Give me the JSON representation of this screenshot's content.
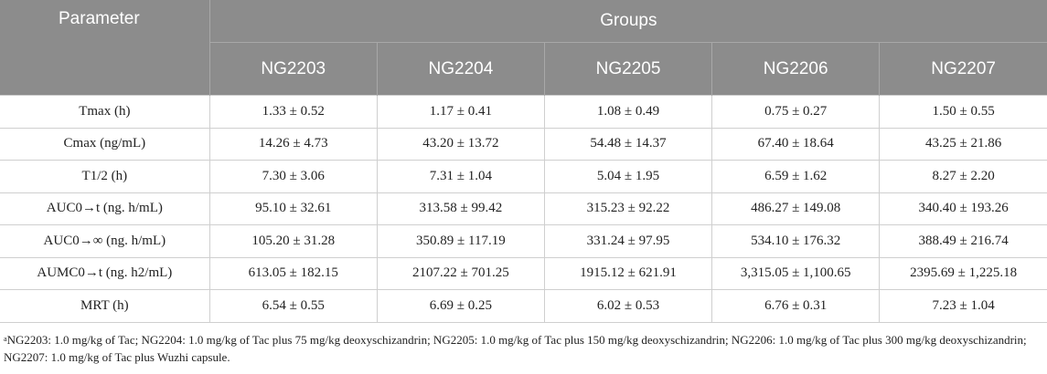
{
  "header": {
    "parameter": "Parameter",
    "groups": "Groups",
    "columns": [
      "NG2203",
      "NG2204",
      "NG2205",
      "NG2206",
      "NG2207"
    ]
  },
  "rows": [
    {
      "param": "Tmax (h)",
      "values": [
        "1.33 ± 0.52",
        "1.17 ± 0.41",
        "1.08 ± 0.49",
        "0.75 ± 0.27",
        "1.50 ± 0.55"
      ]
    },
    {
      "param": "Cmax (ng/mL)",
      "values": [
        "14.26 ± 4.73",
        "43.20 ± 13.72",
        "54.48 ± 14.37",
        "67.40 ± 18.64",
        "43.25 ± 21.86"
      ]
    },
    {
      "param": "T1/2 (h)",
      "values": [
        "7.30 ± 3.06",
        "7.31 ± 1.04",
        "5.04 ± 1.95",
        "6.59 ± 1.62",
        "8.27 ± 2.20"
      ]
    },
    {
      "param": "AUC0→t (ng. h/mL)",
      "values": [
        "95.10 ± 32.61",
        "313.58 ± 99.42",
        "315.23 ± 92.22",
        "486.27 ± 149.08",
        "340.40 ± 193.26"
      ]
    },
    {
      "param": "AUC0→∞ (ng. h/mL)",
      "values": [
        "105.20 ± 31.28",
        "350.89 ± 117.19",
        "331.24 ± 97.95",
        "534.10 ± 176.32",
        "388.49 ± 216.74"
      ]
    },
    {
      "param": "AUMC0→t (ng. h2/mL)",
      "values": [
        "613.05 ± 182.15",
        "2107.22 ± 701.25",
        "1915.12 ± 621.91",
        "3,315.05 ± 1,100.65",
        "2395.69 ± 1,225.18"
      ]
    },
    {
      "param": "MRT (h)",
      "values": [
        "6.54 ± 0.55",
        "6.69 ± 0.25",
        "6.02 ± 0.53",
        "6.76 ± 0.31",
        "7.23 ± 1.04"
      ]
    }
  ],
  "footnote": {
    "marker": "a",
    "text": "NG2203: 1.0 mg/kg of Tac; NG2204: 1.0 mg/kg of Tac plus 75 mg/kg deoxyschizandrin; NG2205: 1.0 mg/kg of Tac plus 150 mg/kg deoxyschizandrin; NG2206: 1.0 mg/kg of Tac plus 300 mg/kg deoxyschizandrin; NG2207: 1.0 mg/kg of Tac plus Wuzhi capsule."
  }
}
